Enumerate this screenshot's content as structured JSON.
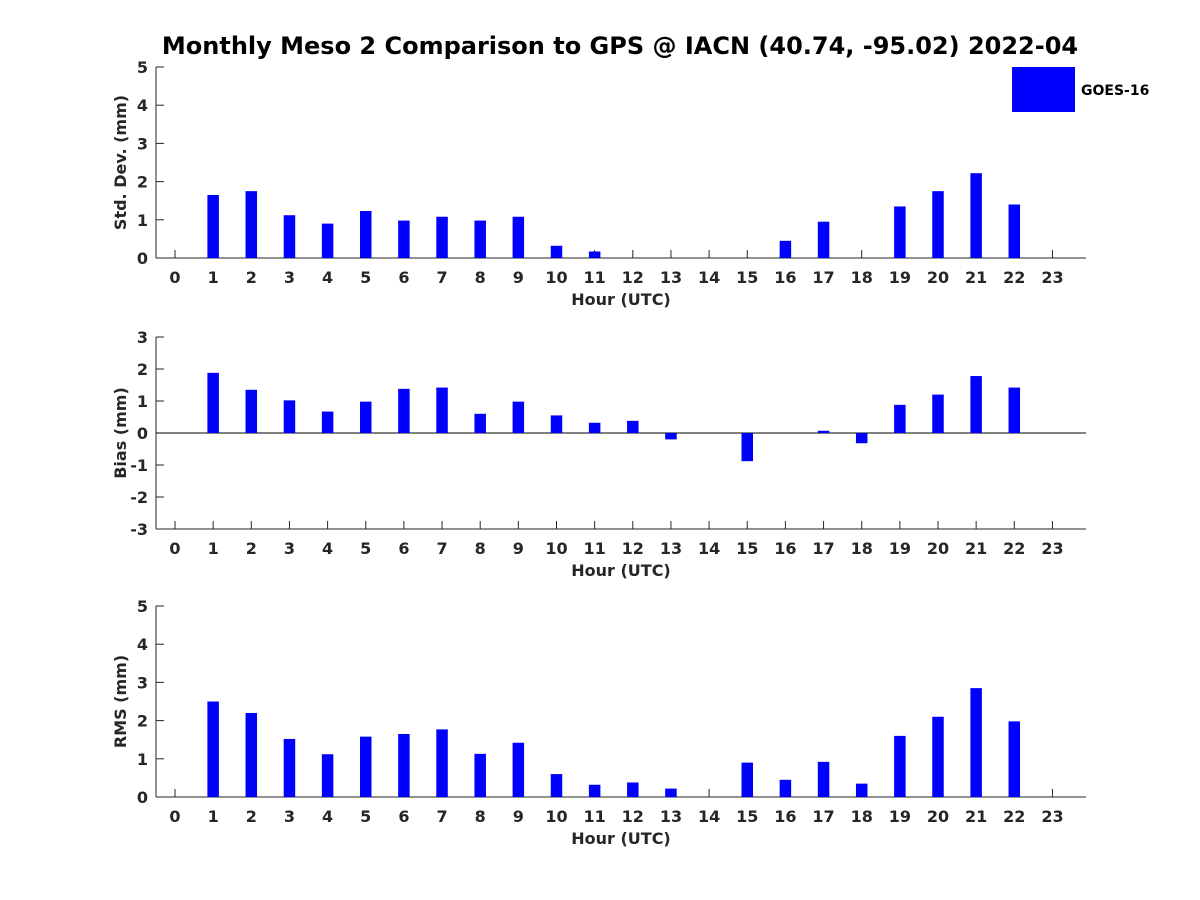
{
  "title": "Monthly Meso 2 Comparison to GPS @ IACN (40.74, -95.02) 2022-04",
  "legend": {
    "label": "GOES-16",
    "color": "#0000ff"
  },
  "chart_data": [
    {
      "type": "bar",
      "name": "std-dev",
      "title": "Monthly Meso 2 Comparison to GPS @ IACN (40.74, -95.02) 2022-04",
      "xlabel": "Hour (UTC)",
      "ylabel": "Std. Dev. (mm)",
      "ylim": [
        0,
        5
      ],
      "yticks": [
        0,
        1,
        2,
        3,
        4,
        5
      ],
      "categories": [
        "0",
        "1",
        "2",
        "3",
        "4",
        "5",
        "6",
        "7",
        "8",
        "9",
        "10",
        "11",
        "12",
        "13",
        "14",
        "15",
        "16",
        "17",
        "18",
        "19",
        "20",
        "21",
        "22",
        "23"
      ],
      "series": [
        {
          "name": "GOES-16",
          "color": "#0000ff",
          "values": [
            null,
            1.65,
            1.75,
            1.12,
            0.9,
            1.23,
            0.98,
            1.08,
            0.98,
            1.08,
            0.32,
            0.17,
            null,
            null,
            null,
            null,
            0.45,
            0.95,
            null,
            1.35,
            1.75,
            2.22,
            1.4,
            null
          ]
        }
      ]
    },
    {
      "type": "bar",
      "name": "bias",
      "xlabel": "Hour (UTC)",
      "ylabel": "Bias (mm)",
      "ylim": [
        -3,
        3
      ],
      "yticks": [
        -3,
        -2,
        -1,
        0,
        1,
        2,
        3
      ],
      "categories": [
        "0",
        "1",
        "2",
        "3",
        "4",
        "5",
        "6",
        "7",
        "8",
        "9",
        "10",
        "11",
        "12",
        "13",
        "14",
        "15",
        "16",
        "17",
        "18",
        "19",
        "20",
        "21",
        "22",
        "23"
      ],
      "series": [
        {
          "name": "GOES-16",
          "color": "#0000ff",
          "values": [
            null,
            1.88,
            1.35,
            1.02,
            0.67,
            0.98,
            1.38,
            1.42,
            0.6,
            0.98,
            0.55,
            0.32,
            0.38,
            -0.2,
            null,
            -0.88,
            null,
            0.07,
            -0.32,
            0.88,
            1.2,
            1.78,
            1.42,
            null
          ]
        }
      ]
    },
    {
      "type": "bar",
      "name": "rms",
      "xlabel": "Hour (UTC)",
      "ylabel": "RMS (mm)",
      "ylim": [
        0,
        5
      ],
      "yticks": [
        0,
        1,
        2,
        3,
        4,
        5
      ],
      "categories": [
        "0",
        "1",
        "2",
        "3",
        "4",
        "5",
        "6",
        "7",
        "8",
        "9",
        "10",
        "11",
        "12",
        "13",
        "14",
        "15",
        "16",
        "17",
        "18",
        "19",
        "20",
        "21",
        "22",
        "23"
      ],
      "series": [
        {
          "name": "GOES-16",
          "color": "#0000ff",
          "values": [
            null,
            2.5,
            2.2,
            1.52,
            1.12,
            1.58,
            1.65,
            1.77,
            1.13,
            1.42,
            0.6,
            0.32,
            0.38,
            0.22,
            null,
            0.9,
            0.45,
            0.92,
            0.35,
            1.6,
            2.1,
            2.85,
            1.98,
            null
          ]
        }
      ]
    }
  ]
}
